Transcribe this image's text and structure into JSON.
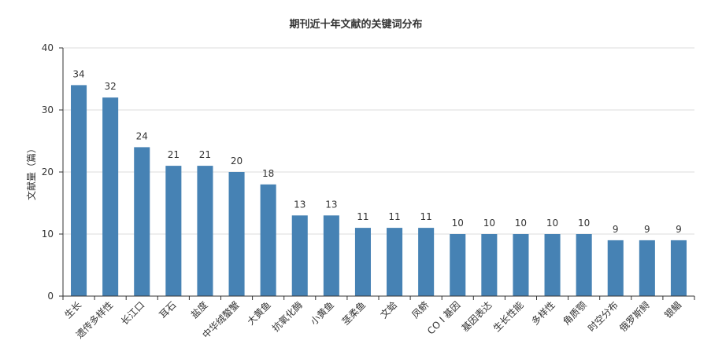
{
  "chart_data": {
    "type": "bar",
    "title": "期刊近十年文献的关键词分布",
    "xlabel": "",
    "ylabel": "文献量（篇）",
    "ylim": [
      0,
      40
    ],
    "yticks": [
      0,
      10,
      20,
      30,
      40
    ],
    "grid": true,
    "legend": "none",
    "bar_color": "#4682b4",
    "categories": [
      "生长",
      "遗传多样性",
      "长江口",
      "耳石",
      "盐度",
      "中华绒螯蟹",
      "大黄鱼",
      "抗氧化酶",
      "小黄鱼",
      "茎柔鱼",
      "文蛤",
      "凤鲚",
      "CO I 基因",
      "基因表达",
      "生长性能",
      "多样性",
      "角质颚",
      "时空分布",
      "俄罗斯鲟",
      "银鲳"
    ],
    "values": [
      34,
      32,
      24,
      21,
      21,
      20,
      18,
      13,
      13,
      11,
      11,
      11,
      10,
      10,
      10,
      10,
      10,
      9,
      9,
      9
    ]
  }
}
